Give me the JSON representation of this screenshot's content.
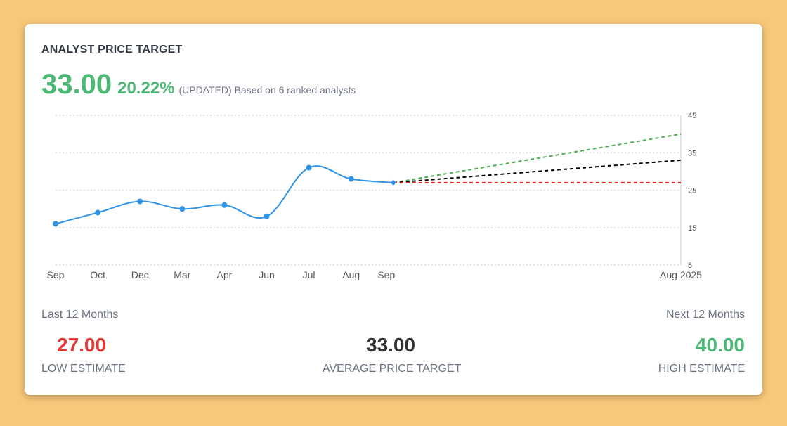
{
  "title": "ANALYST PRICE TARGET",
  "headline": {
    "value": "33.00",
    "change": "20.22%",
    "note": "(UPDATED) Based on 6 ranked analysts"
  },
  "colors": {
    "history": "#2f93e8",
    "high": "#4caf50",
    "average": "#000000",
    "low": "#e8201f",
    "grid": "#d9d9d9",
    "positive": "#4cb875",
    "negative": "#e53935"
  },
  "chart_data": {
    "type": "line",
    "title": "",
    "xlabel": "",
    "ylabel": "",
    "ylim": [
      5,
      45
    ],
    "yticks": [
      "45",
      "35",
      "25",
      "15",
      "5"
    ],
    "grid": true,
    "x_labels": [
      "Sep",
      "Oct",
      "Dec",
      "Mar",
      "Apr",
      "Jun",
      "Jul",
      "Aug",
      "Sep",
      "Aug 2025"
    ],
    "history": {
      "x": [
        "Sep",
        "Oct",
        "Dec",
        "Mar",
        "Apr",
        "Jun",
        "Jul",
        "Aug",
        "Sep"
      ],
      "values": [
        16,
        19,
        22,
        20,
        21,
        18,
        31,
        28,
        27
      ]
    },
    "projections": [
      {
        "key": "high",
        "from": 27,
        "to": 40
      },
      {
        "key": "average",
        "from": 27,
        "to": 33
      },
      {
        "key": "low",
        "from": 27,
        "to": 27
      }
    ]
  },
  "periods": {
    "last": "Last 12 Months",
    "next": "Next 12 Months"
  },
  "estimates": {
    "low": {
      "value": "27.00",
      "label": "LOW ESTIMATE"
    },
    "average": {
      "value": "33.00",
      "label": "AVERAGE PRICE TARGET"
    },
    "high": {
      "value": "40.00",
      "label": "HIGH ESTIMATE"
    }
  }
}
